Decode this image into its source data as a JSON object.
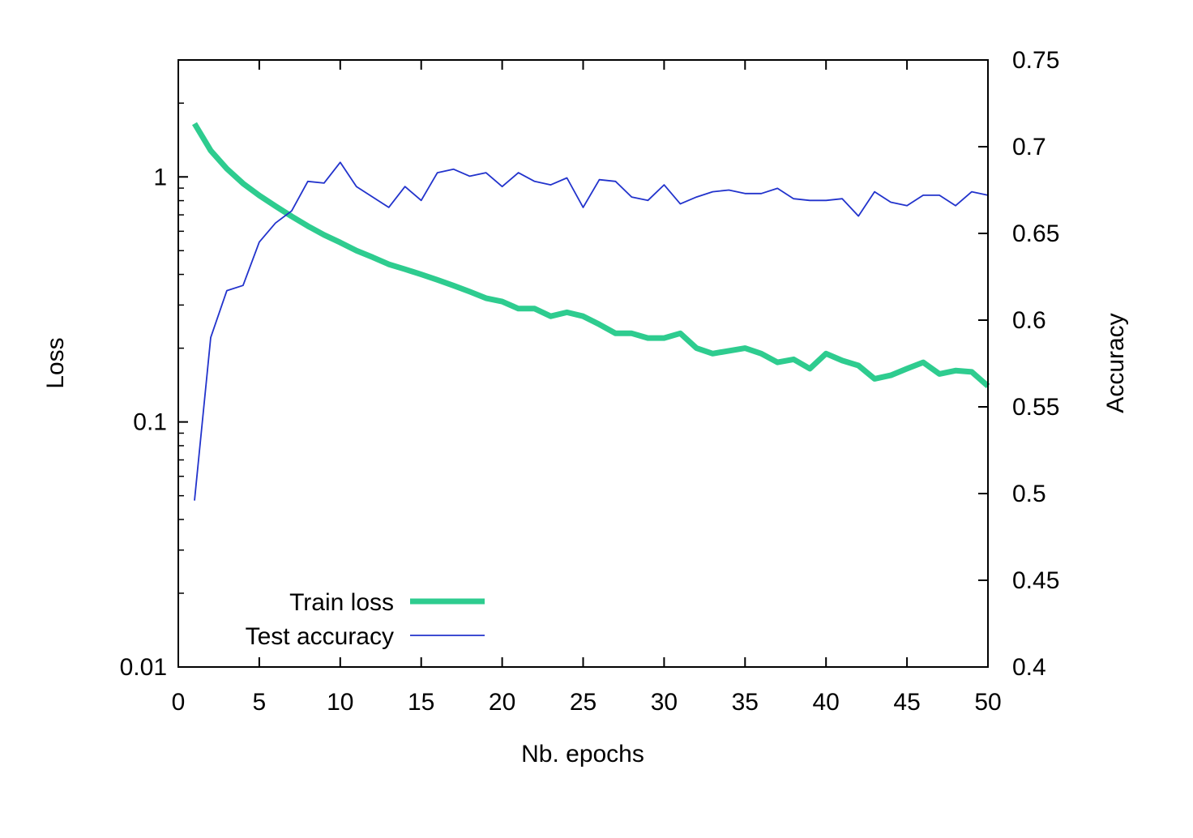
{
  "chart_data": {
    "type": "line",
    "title": "",
    "xlabel": "Nb. epochs",
    "ylabel_left": "Loss",
    "ylabel_right": "Accuracy",
    "xlim": [
      0,
      50
    ],
    "xticks": [
      "0",
      "5",
      "10",
      "15",
      "20",
      "25",
      "30",
      "35",
      "40",
      "45",
      "50"
    ],
    "ylim_left": [
      0.01,
      3
    ],
    "yscale_left": "log",
    "yticks_left": [
      "0.01",
      "0.1",
      "1"
    ],
    "ylim_right": [
      0.4,
      0.75
    ],
    "yticks_right": [
      "0.4",
      "0.45",
      "0.5",
      "0.55",
      "0.6",
      "0.65",
      "0.7",
      "0.75"
    ],
    "grid": false,
    "legend_position": "bottom-left",
    "x": [
      1,
      2,
      3,
      4,
      5,
      6,
      7,
      8,
      9,
      10,
      11,
      12,
      13,
      14,
      15,
      16,
      17,
      18,
      19,
      20,
      21,
      22,
      23,
      24,
      25,
      26,
      27,
      28,
      29,
      30,
      31,
      32,
      33,
      34,
      35,
      36,
      37,
      38,
      39,
      40,
      41,
      42,
      43,
      44,
      45,
      46,
      47,
      48,
      49,
      50
    ],
    "series": [
      {
        "name": "Train loss",
        "axis": "left",
        "color": "#2ecc8f",
        "values": [
          1.65,
          1.28,
          1.08,
          0.94,
          0.84,
          0.76,
          0.69,
          0.63,
          0.58,
          0.54,
          0.5,
          0.47,
          0.44,
          0.42,
          0.4,
          0.38,
          0.36,
          0.34,
          0.32,
          0.31,
          0.29,
          0.29,
          0.27,
          0.28,
          0.27,
          0.25,
          0.23,
          0.23,
          0.22,
          0.22,
          0.23,
          0.2,
          0.19,
          0.195,
          0.2,
          0.19,
          0.175,
          0.18,
          0.165,
          0.19,
          0.178,
          0.17,
          0.15,
          0.155,
          0.165,
          0.175,
          0.157,
          0.162,
          0.16,
          0.14
        ]
      },
      {
        "name": "Test accuracy",
        "axis": "right",
        "color": "#2233cc",
        "values": [
          0.496,
          0.59,
          0.617,
          0.62,
          0.645,
          0.656,
          0.663,
          0.68,
          0.679,
          0.691,
          0.677,
          0.671,
          0.665,
          0.677,
          0.669,
          0.685,
          0.687,
          0.683,
          0.685,
          0.677,
          0.685,
          0.68,
          0.678,
          0.682,
          0.665,
          0.681,
          0.68,
          0.671,
          0.669,
          0.678,
          0.667,
          0.671,
          0.674,
          0.675,
          0.673,
          0.673,
          0.676,
          0.67,
          0.669,
          0.669,
          0.67,
          0.66,
          0.674,
          0.668,
          0.666,
          0.672,
          0.672,
          0.666,
          0.674,
          0.672
        ]
      }
    ]
  }
}
